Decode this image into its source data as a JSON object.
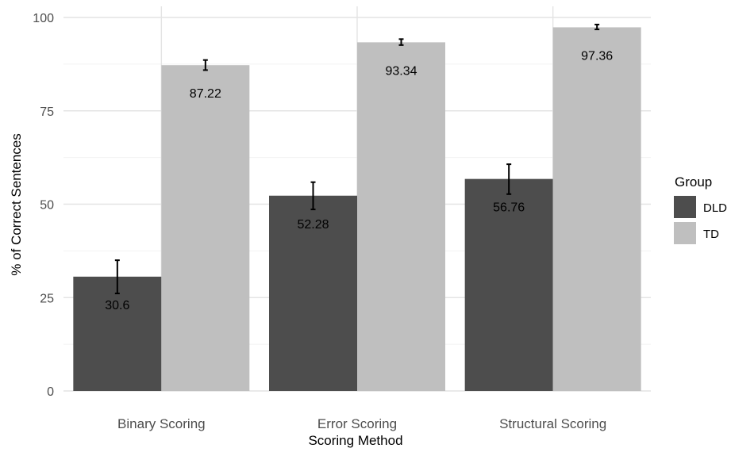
{
  "chart_data": {
    "type": "bar",
    "title": "",
    "xlabel": "Scoring Method",
    "ylabel": "% of Correct Sentences",
    "ylim": [
      0,
      100
    ],
    "y_ticks": [
      0,
      25,
      50,
      75,
      100
    ],
    "y_tick_labels": [
      "0",
      "25",
      "50",
      "75",
      "100"
    ],
    "grid": true,
    "legend": {
      "title": "Group",
      "placement": "right",
      "entries": [
        "DLD",
        "TD"
      ]
    },
    "categories": [
      "Binary Scoring",
      "Error Scoring",
      "Structural Scoring"
    ],
    "series": [
      {
        "name": "DLD",
        "color": "#4d4d4d",
        "values": [
          30.6,
          52.28,
          56.76
        ],
        "labels": [
          "30.6",
          "52.28",
          "56.76"
        ],
        "error_low": [
          26.1,
          48.6,
          52.7
        ],
        "error_high": [
          35.0,
          55.9,
          60.7
        ]
      },
      {
        "name": "TD",
        "color": "#bfbfbf",
        "values": [
          87.22,
          93.34,
          97.36
        ],
        "labels": [
          "87.22",
          "93.34",
          "97.36"
        ],
        "error_low": [
          85.9,
          92.6,
          96.8
        ],
        "error_high": [
          88.6,
          94.2,
          98.1
        ]
      }
    ]
  }
}
